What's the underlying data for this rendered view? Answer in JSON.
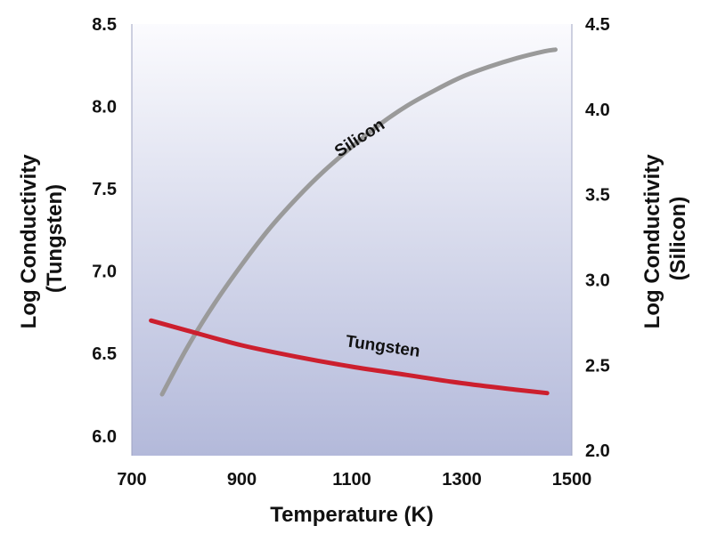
{
  "chart_data": {
    "type": "line",
    "title": "",
    "xlabel": "Temperature (K)",
    "ylabel_left": "Log Conductivity (Tungsten)",
    "ylabel_left_lines": [
      "Log Conductivity",
      "(Tungsten)"
    ],
    "ylabel_right": "Log Conductivity (Silicon)",
    "ylabel_right_lines": [
      "Log Conductivity",
      "(Silicon)"
    ],
    "xlim": [
      700,
      1500
    ],
    "ylim_left": [
      5.88,
      8.5
    ],
    "ylim_right": [
      1.97,
      4.5
    ],
    "x_ticks": [
      "700",
      "900",
      "1100",
      "1300",
      "1500"
    ],
    "y_ticks_left": [
      "6.0",
      "6.5",
      "7.0",
      "7.5",
      "8.0",
      "8.5"
    ],
    "y_ticks_right": [
      "2.0",
      "2.5",
      "3.0",
      "3.5",
      "4.0",
      "4.5"
    ],
    "grid": false,
    "legend": "none",
    "series": [
      {
        "name": "Silicon",
        "label": "Silicon",
        "axis": "right",
        "color": "#9a9a9a",
        "x": [
          755,
          800,
          850,
          900,
          950,
          1000,
          1050,
          1100,
          1150,
          1200,
          1250,
          1300,
          1350,
          1400,
          1450,
          1470
        ],
        "y": [
          2.33,
          2.6,
          2.86,
          3.09,
          3.3,
          3.48,
          3.64,
          3.78,
          3.91,
          4.02,
          4.11,
          4.19,
          4.25,
          4.3,
          4.34,
          4.35
        ]
      },
      {
        "name": "Tungsten",
        "label": "Tungsten",
        "axis": "left",
        "color": "#cc1f2e",
        "x": [
          735,
          800,
          900,
          1000,
          1100,
          1200,
          1300,
          1400,
          1455
        ],
        "y": [
          6.7,
          6.64,
          6.55,
          6.48,
          6.42,
          6.37,
          6.32,
          6.28,
          6.26
        ]
      }
    ]
  }
}
